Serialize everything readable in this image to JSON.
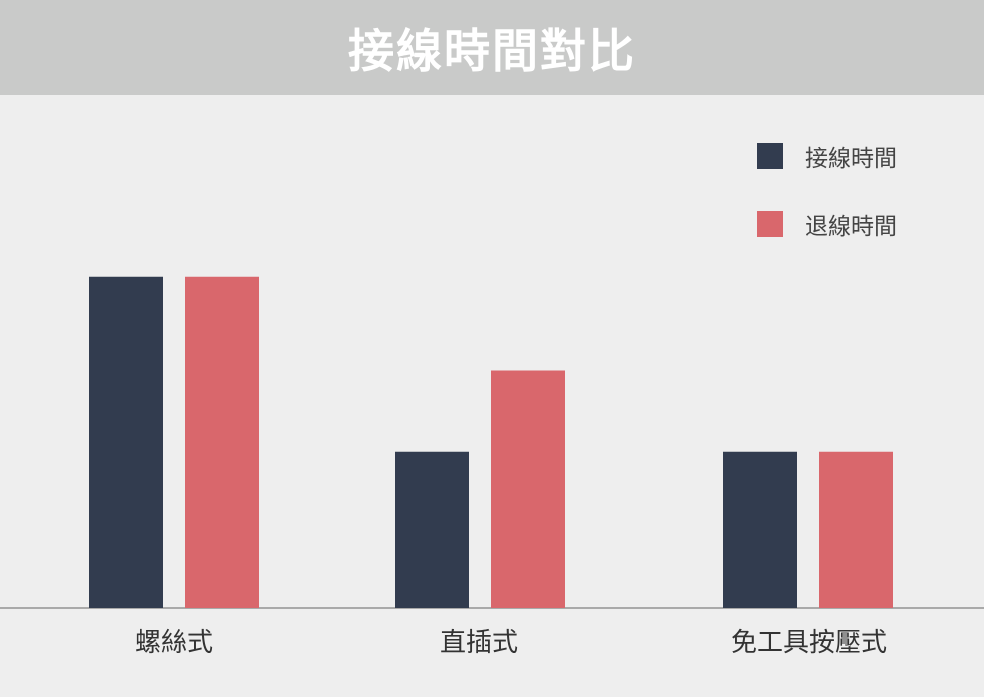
{
  "title": "接線時間對比",
  "colors": {
    "title_bar": "#c9cac9",
    "background": "#eeeeee",
    "series_1": "#323c4f",
    "series_2": "#d9676c",
    "axis": "#a9a9a9"
  },
  "legend": [
    {
      "label": "接線時間"
    },
    {
      "label": "退線時間"
    }
  ],
  "chart_data": {
    "type": "bar",
    "categories": [
      "螺絲式",
      "直插式",
      "免工具按壓式"
    ],
    "series": [
      {
        "name": "接線時間",
        "values": [
          5.3,
          2.5,
          2.5
        ]
      },
      {
        "name": "退線時間",
        "values": [
          5.3,
          3.8,
          2.5
        ]
      }
    ],
    "ylim": [
      0,
      8
    ],
    "grid": false,
    "legend_position": "top-right",
    "xlabel": "",
    "ylabel": ""
  }
}
